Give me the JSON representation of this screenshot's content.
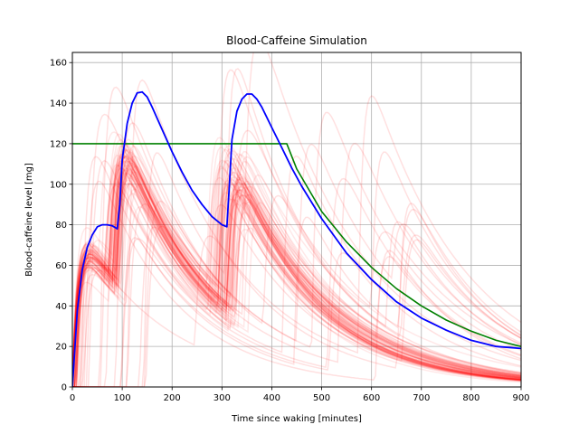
{
  "chart_data": {
    "type": "line",
    "title": "Blood-Caffeine Simulation",
    "xlabel": "Time since waking [minutes]",
    "ylabel": "Blood-caffeine level [mg]",
    "xlim": [
      0,
      900
    ],
    "ylim": [
      0,
      165
    ],
    "xticks": [
      0,
      100,
      200,
      300,
      400,
      500,
      600,
      700,
      800,
      900
    ],
    "yticks": [
      0,
      20,
      40,
      60,
      80,
      100,
      120,
      140,
      160
    ],
    "grid": true,
    "legend": "none",
    "colors": {
      "simulations": "#ff0000",
      "mean": "#0000ff",
      "target": "#008000",
      "grid": "#b0b0b0"
    },
    "series": [
      {
        "role": "mean",
        "x": [
          0,
          10,
          20,
          30,
          40,
          50,
          60,
          70,
          80,
          90,
          95,
          100,
          110,
          120,
          130,
          140,
          150,
          160,
          180,
          200,
          220,
          240,
          260,
          280,
          300,
          310,
          315,
          320,
          330,
          340,
          350,
          360,
          370,
          380,
          400,
          420,
          440,
          460,
          480,
          500,
          550,
          600,
          650,
          700,
          750,
          800,
          850,
          900
        ],
        "y": [
          0,
          38,
          58,
          69,
          75,
          79,
          80,
          80,
          79.5,
          78,
          90,
          112,
          130,
          140,
          145,
          145.5,
          143,
          138,
          127,
          116,
          106,
          97,
          90,
          84,
          80,
          79,
          100,
          122,
          136,
          142,
          144.5,
          144.5,
          142,
          138,
          128,
          118,
          108,
          99,
          91,
          83,
          66,
          53,
          42,
          34,
          28,
          23,
          20,
          19
        ]
      },
      {
        "role": "target",
        "x": [
          0,
          430,
          450,
          500,
          550,
          600,
          650,
          700,
          750,
          800,
          850,
          900
        ],
        "y": [
          120,
          120,
          107.5,
          86.5,
          71.5,
          59,
          48.5,
          40,
          33,
          27.5,
          23,
          20
        ]
      }
    ]
  }
}
